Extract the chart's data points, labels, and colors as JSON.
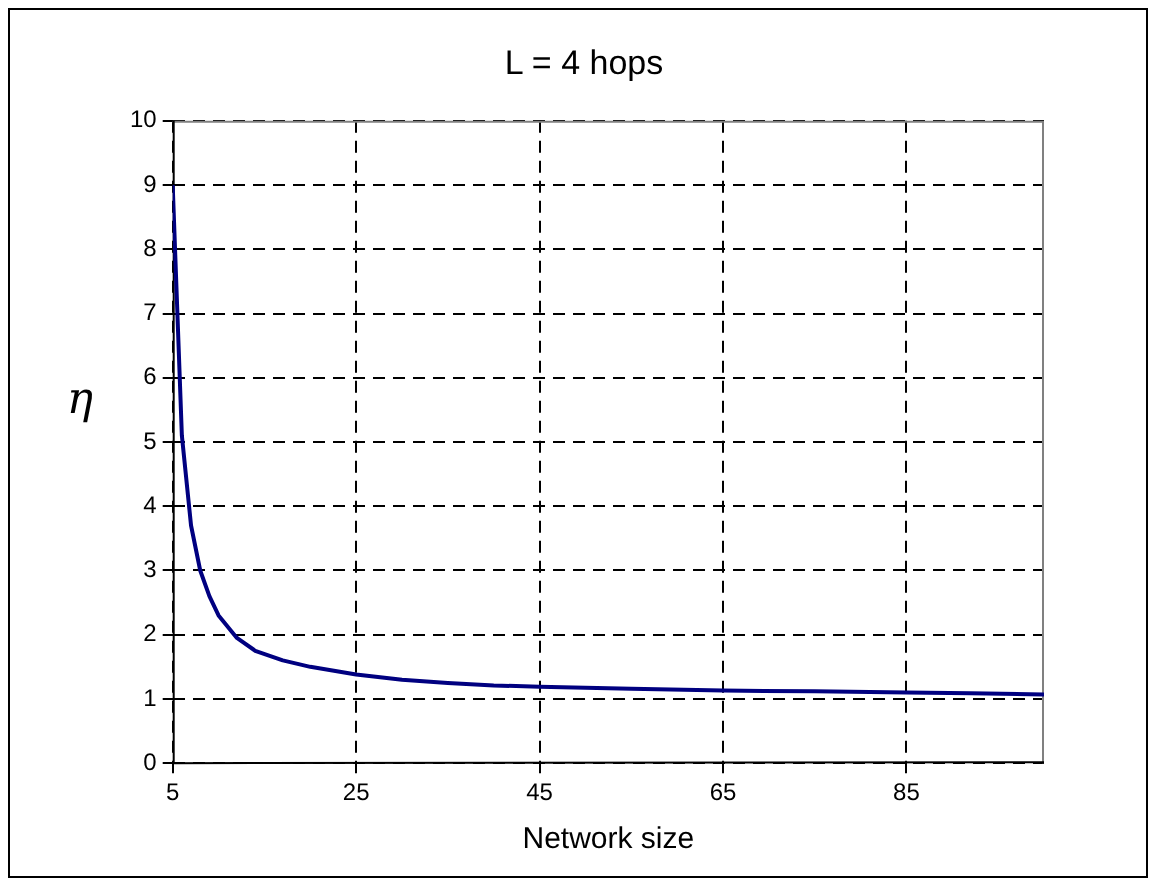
{
  "chart_data": {
    "type": "line",
    "title": "L = 4 hops",
    "xlabel": "Network size",
    "ylabel": "η",
    "x": [
      5,
      6,
      7,
      8,
      9,
      10,
      12,
      14,
      17,
      20,
      25,
      30,
      35,
      40,
      45,
      55,
      65,
      75,
      85,
      92,
      100
    ],
    "series": [
      {
        "color": "#000080",
        "values": [
          9,
          5.1,
          3.7,
          3.0,
          2.6,
          2.3,
          1.95,
          1.75,
          1.6,
          1.5,
          1.38,
          1.3,
          1.25,
          1.21,
          1.19,
          1.16,
          1.13,
          1.12,
          1.1,
          1.09,
          1.07
        ]
      }
    ],
    "xlim": [
      5,
      100
    ],
    "xticks": [
      5,
      25,
      45,
      65,
      85
    ],
    "ylim": [
      0,
      10
    ],
    "yticks": [
      0,
      1,
      2,
      3,
      4,
      5,
      6,
      7,
      8,
      9,
      10
    ],
    "grid": true,
    "legend": false,
    "marker": "none",
    "line_style": "solid"
  }
}
